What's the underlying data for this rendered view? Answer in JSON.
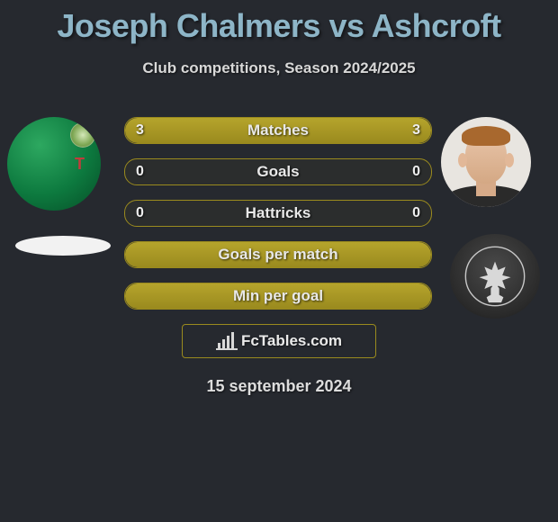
{
  "title": "Joseph Chalmers vs Ashcroft",
  "subtitle": "Club competitions, Season 2024/2025",
  "date": "15 september 2024",
  "branding_text": "FcTables.com",
  "colors": {
    "background": "#26292f",
    "title": "#8db5c7",
    "bar_border": "#9a8a1e",
    "bar_fill_top": "#b5a42c",
    "bar_fill_bottom": "#9a8a1e",
    "text": "#e8e8e8"
  },
  "player_left": {
    "name": "Joseph Chalmers",
    "jersey_primary": "#0d7a3f",
    "jersey_highlight": "#2da860",
    "jersey_letter": "T",
    "club_placeholder_color": "#f2f2f2"
  },
  "player_right": {
    "name": "Ashcroft",
    "skin": "#e2b898",
    "hair": "#a8682e",
    "shoulders": "#2a2a2a",
    "club_badge_bg": "#2a2a2a",
    "club_badge_name": "Partick Thistle"
  },
  "stats": [
    {
      "label": "Matches",
      "left_value": 3,
      "right_value": 3,
      "left_pct": 50,
      "right_pct": 50,
      "show_values": true
    },
    {
      "label": "Goals",
      "left_value": 0,
      "right_value": 0,
      "left_pct": 0,
      "right_pct": 0,
      "show_values": true
    },
    {
      "label": "Hattricks",
      "left_value": 0,
      "right_value": 0,
      "left_pct": 0,
      "right_pct": 0,
      "show_values": true
    },
    {
      "label": "Goals per match",
      "left_value": null,
      "right_value": null,
      "left_pct": 100,
      "right_pct": 0,
      "show_values": false
    },
    {
      "label": "Min per goal",
      "left_value": null,
      "right_value": null,
      "left_pct": 100,
      "right_pct": 0,
      "show_values": false
    }
  ]
}
